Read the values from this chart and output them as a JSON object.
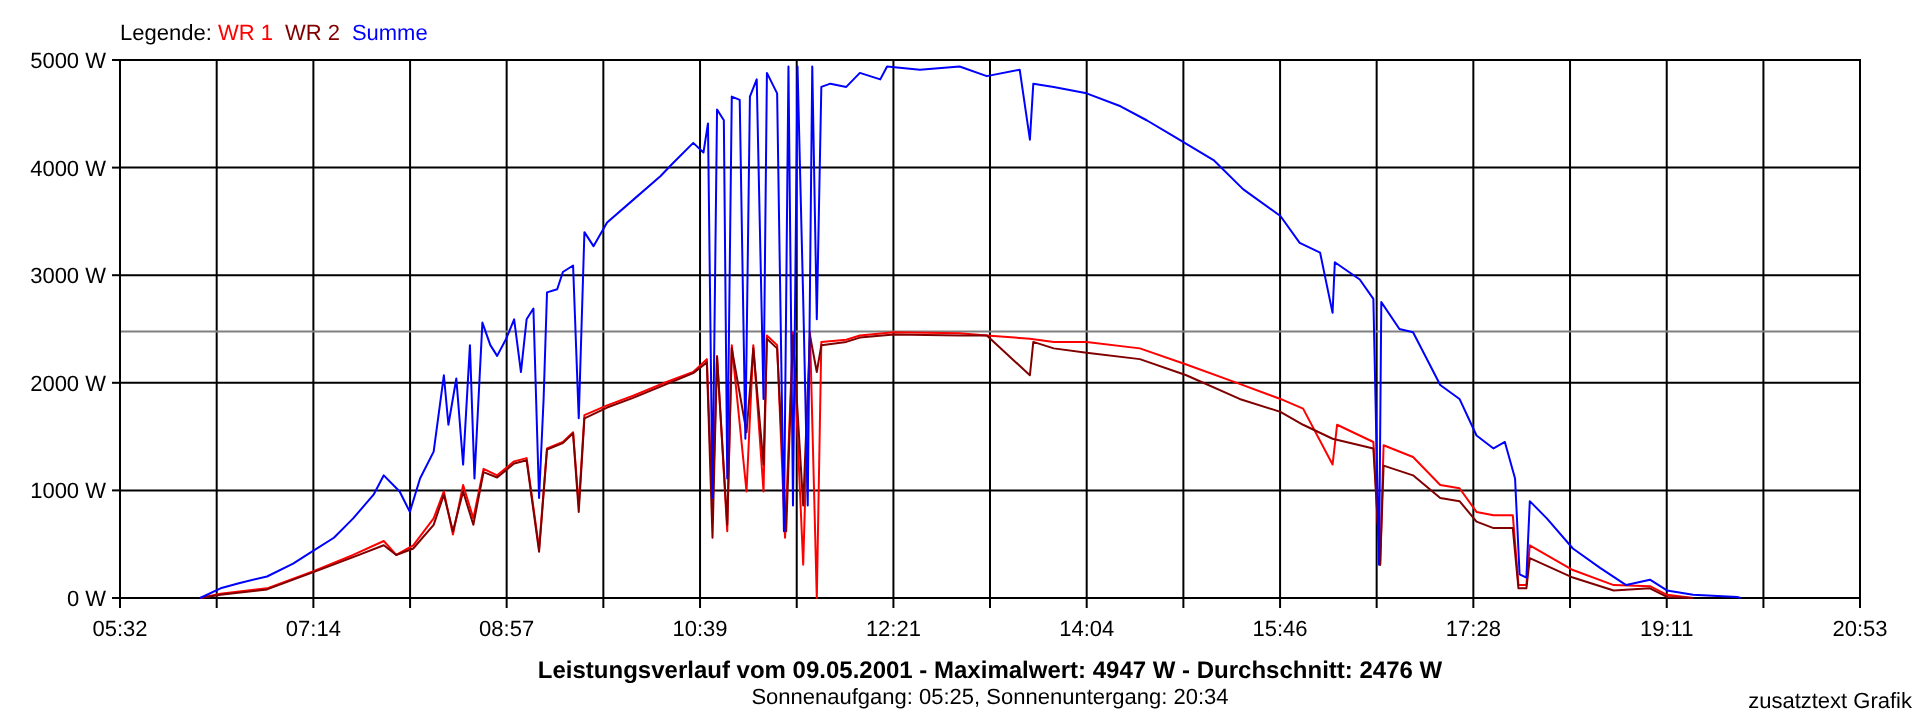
{
  "chart_data": {
    "type": "line",
    "title": "Leistungsverlauf vom 09.05.2001 - Maximalwert: 4947 W - Durchschnitt: 2476 W",
    "subtitle": "Sonnenaufgang: 05:25, Sonnenuntergang: 20:34",
    "annotations": [
      "zusatztext Grafik"
    ],
    "legend_title": "Legende:",
    "legend": "top left",
    "grid": true,
    "xlim": [
      5.533,
      20.883
    ],
    "ylim": [
      0,
      5000
    ],
    "xticks": [
      {
        "value": 5.533,
        "label": "05:32"
      },
      {
        "value": 6.386,
        "label": null
      },
      {
        "value": 7.239,
        "label": "07:14"
      },
      {
        "value": 8.092,
        "label": null
      },
      {
        "value": 8.944,
        "label": "08:57"
      },
      {
        "value": 9.797,
        "label": null
      },
      {
        "value": 10.65,
        "label": "10:39"
      },
      {
        "value": 11.503,
        "label": null
      },
      {
        "value": 12.356,
        "label": "12:21"
      },
      {
        "value": 13.208,
        "label": null
      },
      {
        "value": 14.061,
        "label": "14:04"
      },
      {
        "value": 14.914,
        "label": null
      },
      {
        "value": 15.767,
        "label": "15:46"
      },
      {
        "value": 16.619,
        "label": null
      },
      {
        "value": 17.472,
        "label": "17:28"
      },
      {
        "value": 18.325,
        "label": null
      },
      {
        "value": 19.178,
        "label": "19:11"
      },
      {
        "value": 20.031,
        "label": null
      },
      {
        "value": 20.883,
        "label": "20:53"
      }
    ],
    "yticks": [
      {
        "value": 0,
        "label": "0 W"
      },
      {
        "value": 1000,
        "label": "1000 W"
      },
      {
        "value": 2000,
        "label": "2000 W"
      },
      {
        "value": 3000,
        "label": "3000 W"
      },
      {
        "value": 4000,
        "label": "4000 W"
      },
      {
        "value": 5000,
        "label": "5000 W"
      }
    ],
    "ref_lines": [
      {
        "axis": "y",
        "value": 2476,
        "color": "#808080"
      }
    ],
    "series": [
      {
        "name": "WR 1",
        "color": "#ff0000",
        "x": [
          6.24,
          6.42,
          6.83,
          7.24,
          7.59,
          7.86,
          7.97,
          8.12,
          8.3,
          8.39,
          8.47,
          8.56,
          8.65,
          8.74,
          8.86,
          9.01,
          9.12,
          9.23,
          9.3,
          9.44,
          9.53,
          9.58,
          9.63,
          9.83,
          10.06,
          10.36,
          10.59,
          10.71,
          10.76,
          10.8,
          10.89,
          10.93,
          11.06,
          11.12,
          11.21,
          11.24,
          11.33,
          11.4,
          11.47,
          11.56,
          11.62,
          11.68,
          11.72,
          11.94,
          12.06,
          12.36,
          12.94,
          13.18,
          13.56,
          13.77,
          14.06,
          14.53,
          14.94,
          15.41,
          15.77,
          15.97,
          16.23,
          16.27,
          16.59,
          16.65,
          16.68,
          16.94,
          17.18,
          17.35,
          17.5,
          17.65,
          17.82,
          17.87,
          17.94,
          17.97,
          18.35,
          18.71,
          19.03,
          19.18,
          19.41
        ],
        "values": [
          0,
          40,
          90,
          250,
          400,
          530,
          400,
          490,
          740,
          990,
          590,
          1050,
          740,
          1200,
          1140,
          1270,
          1300,
          460,
          1390,
          1450,
          1540,
          860,
          1700,
          1790,
          1880,
          2010,
          2100,
          2220,
          800,
          2250,
          620,
          2350,
          990,
          2350,
          990,
          2440,
          2350,
          560,
          2470,
          310,
          2470,
          0,
          2380,
          2400,
          2440,
          2470,
          2460,
          2440,
          2410,
          2380,
          2380,
          2320,
          2170,
          1990,
          1850,
          1760,
          1240,
          1610,
          1450,
          310,
          1420,
          1310,
          1050,
          1020,
          800,
          770,
          770,
          120,
          120,
          490,
          260,
          120,
          110,
          30,
          0
        ]
      },
      {
        "name": "WR 2",
        "color": "#800000",
        "x": [
          6.24,
          6.42,
          6.83,
          7.24,
          7.59,
          7.86,
          7.97,
          8.12,
          8.3,
          8.39,
          8.47,
          8.56,
          8.65,
          8.74,
          8.86,
          9.01,
          9.12,
          9.23,
          9.3,
          9.44,
          9.53,
          9.58,
          9.63,
          9.83,
          10.06,
          10.36,
          10.59,
          10.71,
          10.76,
          10.8,
          10.89,
          10.93,
          11.06,
          11.12,
          11.21,
          11.24,
          11.33,
          11.41,
          11.47,
          11.56,
          11.62,
          11.68,
          11.72,
          11.94,
          12.06,
          12.36,
          12.94,
          13.18,
          13.56,
          13.59,
          13.77,
          14.06,
          14.53,
          14.94,
          15.41,
          15.77,
          15.97,
          16.23,
          16.59,
          16.65,
          16.68,
          16.94,
          17.18,
          17.35,
          17.5,
          17.65,
          17.82,
          17.87,
          17.94,
          17.97,
          18.35,
          18.71,
          19.03,
          19.18,
          19.41
        ],
        "values": [
          0,
          30,
          80,
          240,
          380,
          490,
          400,
          460,
          680,
          960,
          620,
          990,
          680,
          1170,
          1120,
          1250,
          1280,
          430,
          1380,
          1440,
          1530,
          800,
          1670,
          1770,
          1860,
          1990,
          2090,
          2190,
          560,
          2240,
          680,
          2320,
          1540,
          2320,
          1240,
          2410,
          2320,
          620,
          2440,
          860,
          2440,
          2100,
          2350,
          2380,
          2420,
          2450,
          2440,
          2440,
          2070,
          2380,
          2320,
          2280,
          2220,
          2070,
          1850,
          1730,
          1610,
          1480,
          1390,
          310,
          1230,
          1140,
          930,
          900,
          710,
          650,
          650,
          90,
          90,
          370,
          190,
          70,
          90,
          10,
          0
        ]
      },
      {
        "name": "Summe",
        "color": "#0000ff",
        "x": [
          6.24,
          6.42,
          6.59,
          6.83,
          7.06,
          7.24,
          7.42,
          7.59,
          7.77,
          7.86,
          8.0,
          8.09,
          8.18,
          8.3,
          8.39,
          8.43,
          8.5,
          8.56,
          8.62,
          8.66,
          8.73,
          8.8,
          8.86,
          8.94,
          9.01,
          9.07,
          9.12,
          9.18,
          9.23,
          9.27,
          9.3,
          9.39,
          9.44,
          9.53,
          9.58,
          9.63,
          9.71,
          9.83,
          10.06,
          10.3,
          10.41,
          10.59,
          10.68,
          10.72,
          10.76,
          10.8,
          10.86,
          10.89,
          10.93,
          11.0,
          11.05,
          11.09,
          11.15,
          11.21,
          11.24,
          11.33,
          11.39,
          11.43,
          11.47,
          11.51,
          11.56,
          11.6,
          11.64,
          11.68,
          11.72,
          11.8,
          11.94,
          12.06,
          12.24,
          12.3,
          12.59,
          12.94,
          13.18,
          13.47,
          13.56,
          13.59,
          13.77,
          14.06,
          14.36,
          14.59,
          14.83,
          15.18,
          15.44,
          15.77,
          15.94,
          16.12,
          16.23,
          16.25,
          16.47,
          16.59,
          16.64,
          16.66,
          16.82,
          16.94,
          17.18,
          17.35,
          17.5,
          17.65,
          17.75,
          17.84,
          17.88,
          17.94,
          17.97,
          18.12,
          18.35,
          18.59,
          18.82,
          19.03,
          19.18,
          19.41,
          19.8,
          19.83
        ],
        "values": [
          0,
          90,
          140,
          200,
          320,
          440,
          560,
          740,
          960,
          1140,
          990,
          800,
          1110,
          1360,
          2070,
          1610,
          2040,
          1240,
          2350,
          1110,
          2560,
          2350,
          2250,
          2410,
          2590,
          2100,
          2590,
          2690,
          930,
          1850,
          2840,
          2870,
          3030,
          3090,
          1670,
          3400,
          3270,
          3490,
          3700,
          3920,
          4040,
          4230,
          4140,
          4410,
          930,
          4540,
          4440,
          1110,
          4660,
          4630,
          1480,
          4660,
          4820,
          1850,
          4880,
          4690,
          620,
          4940,
          860,
          4940,
          2780,
          860,
          4940,
          2590,
          4750,
          4780,
          4750,
          4880,
          4820,
          4940,
          4910,
          4940,
          4850,
          4910,
          4260,
          4780,
          4750,
          4690,
          4570,
          4440,
          4290,
          4070,
          3800,
          3550,
          3300,
          3210,
          2650,
          3120,
          2960,
          2780,
          310,
          2750,
          2500,
          2470,
          1980,
          1850,
          1510,
          1390,
          1450,
          1110,
          220,
          190,
          900,
          740,
          460,
          280,
          120,
          170,
          70,
          30,
          10,
          0
        ]
      }
    ]
  }
}
